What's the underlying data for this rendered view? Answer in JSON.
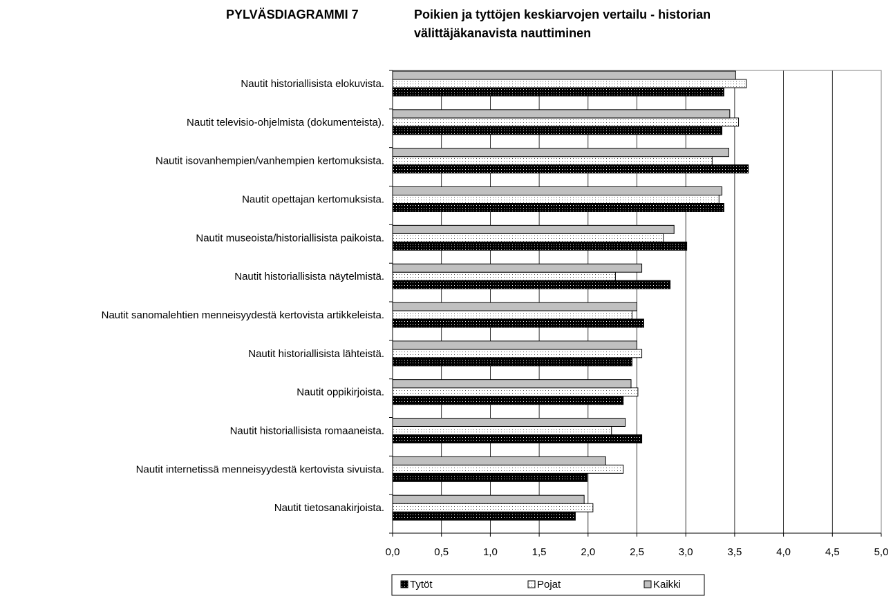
{
  "chart_data": {
    "type": "hbar",
    "title": [
      "PYLVÄSDIAGRAMMI 7",
      "Poikien ja tyttöjen keskiarvojen vertailu - historian",
      "välittäjäkanavista nauttiminen"
    ],
    "categories": [
      "Nautit historiallisista elokuvista.",
      "Nautit televisio-ohjelmista (dokumenteista).",
      "Nautit isovanhempien/vanhempien kertomuksista.",
      "Nautit opettajan kertomuksista.",
      "Nautit museoista/historiallisista paikoista.",
      "Nautit historiallisista näytelmistä.",
      "Nautit sanomalehtien menneisyydestä kertovista artikkeleista.",
      "Nautit historiallisista lähteistä.",
      "Nautit oppikirjoista.",
      "Nautit historiallisista romaaneista.",
      "Nautit internetissä menneisyydestä kertovista sivuista.",
      "Nautit tietosanakirjoista."
    ],
    "series": [
      {
        "name": "Tytöt",
        "color": "#000000",
        "values": [
          3.39,
          3.37,
          3.64,
          3.39,
          3.01,
          2.84,
          2.57,
          2.45,
          2.36,
          2.55,
          1.99,
          1.87
        ]
      },
      {
        "name": "Pojat",
        "color": "#ffffff",
        "values": [
          3.62,
          3.54,
          3.27,
          3.34,
          2.77,
          2.28,
          2.45,
          2.55,
          2.51,
          2.24,
          2.36,
          2.05
        ]
      },
      {
        "name": "Kaikki",
        "color": "#c0c0c0",
        "values": [
          3.51,
          3.45,
          3.44,
          3.37,
          2.88,
          2.55,
          2.5,
          2.5,
          2.44,
          2.38,
          2.18,
          1.96
        ]
      }
    ],
    "xlim": [
      0,
      5
    ],
    "xticks": [
      {
        "value": 0,
        "label": "0,0"
      },
      {
        "value": 0.5,
        "label": "0,5"
      },
      {
        "value": 1,
        "label": "1,0"
      },
      {
        "value": 1.5,
        "label": "1,5"
      },
      {
        "value": 2,
        "label": "2,0"
      },
      {
        "value": 2.5,
        "label": "2,5"
      },
      {
        "value": 3,
        "label": "3,0"
      },
      {
        "value": 3.5,
        "label": "3,5"
      },
      {
        "value": 4,
        "label": "4,0"
      },
      {
        "value": 4.5,
        "label": "4,5"
      },
      {
        "value": 5,
        "label": "5,0"
      }
    ],
    "grid": true,
    "legend": "bottom"
  }
}
